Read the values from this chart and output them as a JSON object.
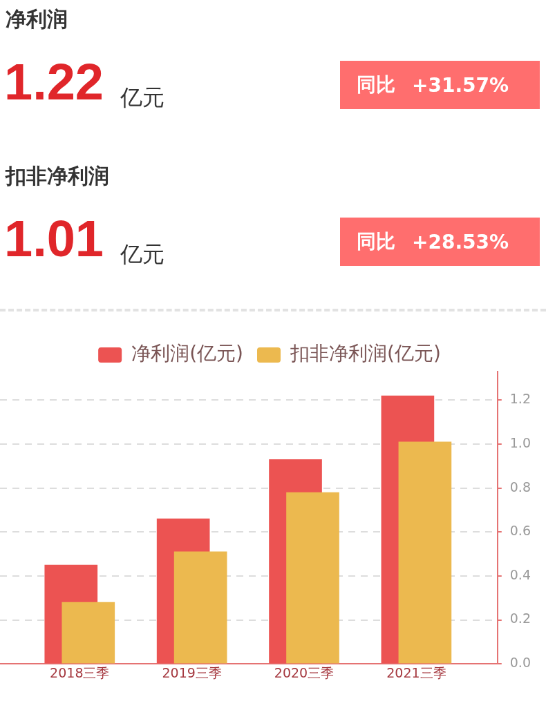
{
  "chart_data": [
    {
      "type": "other",
      "annotations": [
        "净利润",
        "1.22",
        "亿元",
        "同比",
        "+31.57%",
        "扣非净利润",
        "1.01",
        "亿元",
        "同比",
        "+28.53%"
      ]
    },
    {
      "type": "bar",
      "categories": [
        "2018三季",
        "2019三季",
        "2020三季",
        "2021三季"
      ],
      "series": [
        {
          "name": "净利润(亿元)",
          "color": "#ec5352",
          "values": [
            0.45,
            0.66,
            0.93,
            1.22
          ]
        },
        {
          "name": "扣非净利润(亿元)",
          "color": "#ecb94f",
          "values": [
            0.28,
            0.51,
            0.78,
            1.01
          ]
        }
      ],
      "ylim": [
        0,
        1.33
      ],
      "yticks": [
        {
          "value": 0,
          "label": "0.0"
        },
        0.2,
        0.4,
        0.6,
        0.8,
        {
          "value": 1,
          "label": "1.0"
        },
        1.2
      ],
      "grid": "y",
      "legend": "top"
    }
  ]
}
